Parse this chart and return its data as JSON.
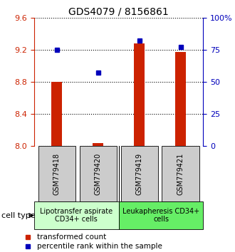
{
  "title": "GDS4079 / 8156861",
  "samples": [
    "GSM779418",
    "GSM779420",
    "GSM779419",
    "GSM779421"
  ],
  "bar_values": [
    8.8,
    8.04,
    9.28,
    9.17
  ],
  "dot_values": [
    75,
    57,
    82,
    77
  ],
  "left_ylim": [
    8.0,
    9.6
  ],
  "right_ylim": [
    0,
    100
  ],
  "left_yticks": [
    8.0,
    8.4,
    8.8,
    9.2,
    9.6
  ],
  "right_yticks": [
    0,
    25,
    50,
    75,
    100
  ],
  "right_yticklabels": [
    "0",
    "25",
    "50",
    "75",
    "100%"
  ],
  "bar_color": "#cc2200",
  "dot_color": "#0000bb",
  "cell_type_label": "cell type",
  "legend_bar_label": "transformed count",
  "legend_dot_label": "percentile rank within the sample",
  "left_tick_color": "#cc2200",
  "right_tick_color": "#0000bb",
  "bar_width": 0.25,
  "sample_box_color": "#cccccc",
  "title_fontsize": 10,
  "tick_fontsize": 8,
  "legend_fontsize": 7.5,
  "sample_fontsize": 7,
  "celltype_fontsize": 7,
  "group1_color": "#ccffcc",
  "group2_color": "#66ee66"
}
